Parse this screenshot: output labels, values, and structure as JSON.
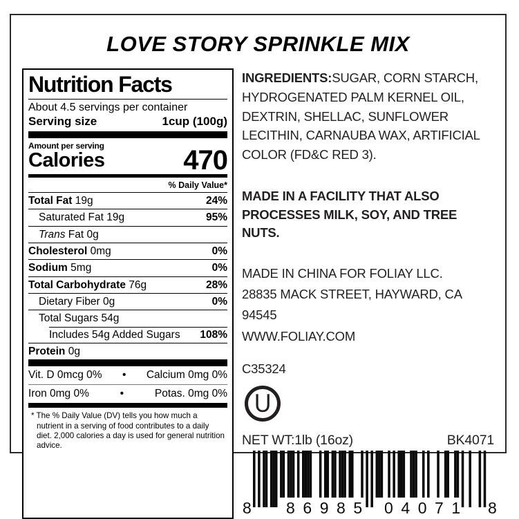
{
  "title": "LOVE STORY SPRINKLE MIX",
  "colors": {
    "ink": "#231f20",
    "panel_black": "#000000",
    "border": "#2f2a28"
  },
  "nutrition": {
    "header": "Nutrition Facts",
    "servings_per_container": "About 4.5 servings per container",
    "serving_size_label": "Serving size",
    "serving_size_value": "1cup (100g)",
    "amount_per_serving": "Amount per serving",
    "calories_label": "Calories",
    "calories_value": "470",
    "daily_value_header": "% Daily Value*",
    "rows": [
      {
        "bold": "Total Fat",
        "text": "19g",
        "dv": "24%",
        "indent": 0
      },
      {
        "text": "Saturated Fat 19g",
        "dv": "95%",
        "indent": 1
      },
      {
        "italic": "Trans",
        "text": "Fat 0g",
        "dv": "",
        "indent": 1
      },
      {
        "bold": "Cholesterol",
        "text": "0mg",
        "dv": "0%",
        "indent": 0
      },
      {
        "bold": "Sodium",
        "text": "5mg",
        "dv": "0%",
        "indent": 0
      },
      {
        "bold": "Total Carbohydrate",
        "text": "76g",
        "dv": "28%",
        "indent": 0
      },
      {
        "text": "Dietary Fiber 0g",
        "dv": "0%",
        "indent": 1
      },
      {
        "text": "Total Sugars 54g",
        "dv": "",
        "indent": 1
      },
      {
        "text": "Includes 54g Added Sugars",
        "dv": "108%",
        "indent": 2,
        "sep": "indent"
      },
      {
        "bold": "Protein",
        "text": "0g",
        "dv": "",
        "indent": 0
      }
    ],
    "bullet": "•",
    "vitamins": [
      {
        "left": "Vit. D 0mcg 0%",
        "right": "Calcium 0mg 0%"
      },
      {
        "left": "Iron 0mg 0%",
        "right": "Potas. 0mg 0%"
      }
    ],
    "footnote": "* The % Daily Value (DV) tells you how much a nutrient in a serving of food contributes to a daily diet. 2,000 calories a day is used for general nutrition advice."
  },
  "right": {
    "ingredients_label": "INGREDIENTS:",
    "ingredients_text": "SUGAR, CORN STARCH, HYDROGENATED PALM KERNEL OIL, DEXTRIN, SHELLAC, SUNFLOWER LECITHIN, CARNAUBA WAX, ARTIFICIAL COLOR (FD&C RED 3).",
    "allergen": "MADE IN A FACILITY THAT ALSO\nPROCESSES MILK, SOY, AND TREE NUTS.",
    "address_lines": [
      "MADE IN CHINA FOR FOLIAY LLC.",
      "28835 MACK STREET, HAYWARD, CA 94545",
      "WWW.FOLIAY.COM"
    ],
    "lot_code": "C35324",
    "kosher_symbol": "U",
    "net_wt": "NET WT:1lb (16oz)",
    "item_code": "BK4071",
    "barcode": {
      "left_digit": "8",
      "group1": "86985",
      "group2": "04071",
      "right_digit": "8",
      "pattern": "10101101110110111010111100010110110111011000101010111001010111001110010100010011001101001000101"
    }
  }
}
